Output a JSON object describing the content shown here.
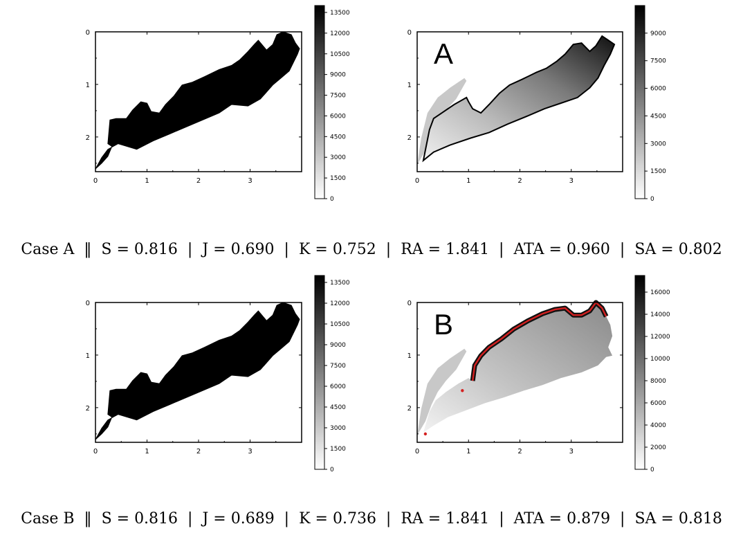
{
  "chart_data": [
    {
      "type": "heatmap",
      "panel": "case-a-reference",
      "x_ticks": [
        "0",
        "1",
        "2",
        "3"
      ],
      "y_ticks": [
        "0",
        "1",
        "2"
      ],
      "y_inverted": true,
      "colormap": "white-to-black",
      "colorbar_ticks": [
        "0",
        "1500",
        "3000",
        "4500",
        "6000",
        "7500",
        "9000",
        "10500",
        "12000",
        "13500"
      ],
      "fill_value": 14000
    },
    {
      "type": "heatmap",
      "panel": "case-a-result",
      "overlay_label": "A",
      "x_ticks": [
        "0",
        "1",
        "2",
        "3"
      ],
      "y_ticks": [
        "0",
        "1",
        "2"
      ],
      "y_inverted": true,
      "colormap": "white-to-black",
      "colorbar_ticks": [
        "0",
        "1500",
        "3000",
        "4500",
        "6000",
        "7500",
        "9000"
      ],
      "boundary_highlight": false
    },
    {
      "type": "heatmap",
      "panel": "case-b-reference",
      "x_ticks": [
        "0",
        "1",
        "2",
        "3"
      ],
      "y_ticks": [
        "0",
        "1",
        "2"
      ],
      "y_inverted": true,
      "colormap": "white-to-black",
      "colorbar_ticks": [
        "0",
        "1500",
        "3000",
        "4500",
        "6000",
        "7500",
        "9000",
        "10500",
        "12000",
        "13500"
      ],
      "fill_value": 14000
    },
    {
      "type": "heatmap",
      "panel": "case-b-result",
      "overlay_label": "B",
      "x_ticks": [
        "0",
        "1",
        "2",
        "3"
      ],
      "y_ticks": [
        "0",
        "1",
        "2"
      ],
      "y_inverted": true,
      "colormap": "white-to-black",
      "colorbar_ticks": [
        "0",
        "2000",
        "4000",
        "6000",
        "8000",
        "10000",
        "12000",
        "14000",
        "16000"
      ],
      "boundary_highlight": true,
      "highlight_color": "#d42020"
    }
  ],
  "captions": [
    {
      "case": "Case A",
      "metrics": [
        {
          "name": "S",
          "value": "0.816"
        },
        {
          "name": "J",
          "value": "0.690"
        },
        {
          "name": "K",
          "value": "0.752"
        },
        {
          "name": "RA",
          "value": "1.841"
        },
        {
          "name": "ATA",
          "value": "0.960"
        },
        {
          "name": "SA",
          "value": "0.802"
        }
      ]
    },
    {
      "case": "Case B",
      "metrics": [
        {
          "name": "S",
          "value": "0.816"
        },
        {
          "name": "J",
          "value": "0.689"
        },
        {
          "name": "K",
          "value": "0.736"
        },
        {
          "name": "RA",
          "value": "1.841"
        },
        {
          "name": "ATA",
          "value": "0.879"
        },
        {
          "name": "SA",
          "value": "0.818"
        }
      ]
    }
  ]
}
